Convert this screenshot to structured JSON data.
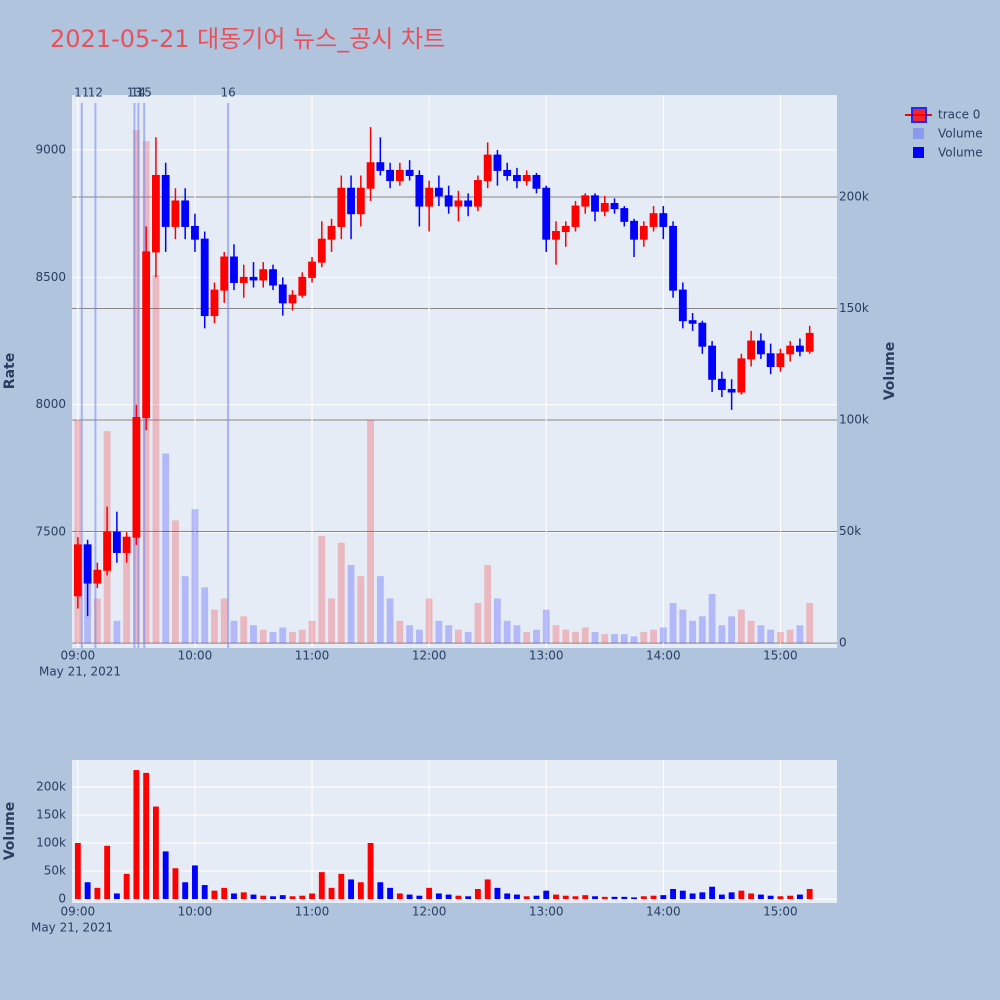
{
  "chart_data": [
    {
      "type": "candlestick",
      "title": "2021-05-21 대동기어 뉴스_공시 차트",
      "name": "trace 0",
      "ylabel": "Rate",
      "y2label": "Volume",
      "x_date_label": "May 21, 2021",
      "increasing_color": "#ff0000",
      "decreasing_color": "#0000ff",
      "x": [
        0,
        5,
        10,
        15,
        20,
        25,
        30,
        35,
        40,
        45,
        50,
        55,
        60,
        65,
        70,
        75,
        80,
        85,
        90,
        95,
        100,
        105,
        110,
        115,
        120,
        125,
        130,
        135,
        140,
        145,
        150,
        155,
        160,
        165,
        170,
        175,
        180,
        185,
        190,
        195,
        200,
        205,
        210,
        215,
        220,
        225,
        230,
        235,
        240,
        245,
        250,
        255,
        260,
        265,
        270,
        275,
        280,
        285,
        290,
        295,
        300,
        305,
        310,
        315,
        320,
        325,
        330,
        335,
        340,
        345,
        350,
        355,
        360,
        365,
        370,
        375
      ],
      "open": [
        7250,
        7450,
        7300,
        7350,
        7500,
        7420,
        7480,
        7950,
        8600,
        8900,
        8700,
        8800,
        8700,
        8650,
        8350,
        8450,
        8580,
        8480,
        8500,
        8490,
        8530,
        8470,
        8400,
        8430,
        8500,
        8560,
        8650,
        8700,
        8850,
        8750,
        8850,
        8950,
        8920,
        8880,
        8920,
        8900,
        8780,
        8850,
        8820,
        8780,
        8800,
        8780,
        8880,
        8980,
        8920,
        8900,
        8880,
        8900,
        8850,
        8650,
        8680,
        8700,
        8780,
        8820,
        8760,
        8790,
        8770,
        8720,
        8650,
        8700,
        8750,
        8700,
        8450,
        8330,
        8320,
        8230,
        8100,
        8060,
        8050,
        8180,
        8250,
        8200,
        8150,
        8200,
        8230,
        8210
      ],
      "high": [
        7480,
        7470,
        7380,
        7600,
        7580,
        7500,
        8000,
        8700,
        9050,
        8950,
        8850,
        8850,
        8750,
        8680,
        8480,
        8600,
        8630,
        8550,
        8560,
        8560,
        8550,
        8500,
        8450,
        8520,
        8580,
        8720,
        8730,
        8900,
        8900,
        8900,
        9090,
        9050,
        8950,
        8950,
        8960,
        8920,
        8880,
        8900,
        8860,
        8840,
        8830,
        8900,
        9030,
        9000,
        8950,
        8930,
        8920,
        8910,
        8860,
        8720,
        8720,
        8800,
        8830,
        8830,
        8820,
        8810,
        8780,
        8730,
        8720,
        8780,
        8780,
        8720,
        8480,
        8360,
        8330,
        8250,
        8130,
        8100,
        8200,
        8290,
        8280,
        8240,
        8220,
        8250,
        8260,
        8310
      ],
      "low": [
        7200,
        7170,
        7280,
        7330,
        7380,
        7380,
        7450,
        7900,
        8500,
        8600,
        8650,
        8650,
        8600,
        8300,
        8320,
        8400,
        8450,
        8420,
        8460,
        8460,
        8450,
        8350,
        8370,
        8420,
        8480,
        8540,
        8600,
        8650,
        8650,
        8700,
        8800,
        8900,
        8850,
        8860,
        8880,
        8700,
        8680,
        8780,
        8750,
        8720,
        8740,
        8760,
        8850,
        8860,
        8880,
        8850,
        8860,
        8830,
        8600,
        8550,
        8620,
        8680,
        8750,
        8720,
        8740,
        8750,
        8700,
        8580,
        8620,
        8680,
        8650,
        8420,
        8300,
        8290,
        8200,
        8050,
        8030,
        7980,
        8040,
        8150,
        8180,
        8120,
        8130,
        8170,
        8190,
        8200
      ],
      "close": [
        7450,
        7300,
        7350,
        7500,
        7420,
        7480,
        7950,
        8600,
        8900,
        8700,
        8800,
        8700,
        8650,
        8350,
        8450,
        8580,
        8480,
        8500,
        8490,
        8530,
        8470,
        8400,
        8430,
        8500,
        8560,
        8650,
        8700,
        8850,
        8750,
        8850,
        8950,
        8920,
        8880,
        8920,
        8900,
        8780,
        8850,
        8820,
        8780,
        8800,
        8780,
        8880,
        8980,
        8920,
        8900,
        8880,
        8900,
        8850,
        8650,
        8680,
        8700,
        8780,
        8820,
        8760,
        8790,
        8770,
        8720,
        8650,
        8700,
        8750,
        8700,
        8450,
        8330,
        8320,
        8230,
        8100,
        8060,
        8050,
        8180,
        8250,
        8200,
        8150,
        8200,
        8230,
        8210,
        8280
      ],
      "volume": {
        "name": "Volume",
        "color": "#8a9af0",
        "axis": "y2",
        "values": [
          100000,
          30000,
          20000,
          95000,
          10000,
          45000,
          230000,
          225000,
          165000,
          85000,
          55000,
          30000,
          60000,
          25000,
          15000,
          20000,
          10000,
          12000,
          8000,
          6000,
          5000,
          7000,
          5000,
          6000,
          10000,
          48000,
          20000,
          45000,
          35000,
          30000,
          100000,
          30000,
          20000,
          10000,
          8000,
          6000,
          20000,
          10000,
          8000,
          6000,
          5000,
          18000,
          35000,
          20000,
          10000,
          8000,
          5000,
          6000,
          15000,
          8000,
          6000,
          5000,
          7000,
          5000,
          4000,
          4000,
          4000,
          3000,
          5000,
          6000,
          7000,
          18000,
          15000,
          10000,
          12000,
          22000,
          8000,
          12000,
          15000,
          10000,
          8000,
          6000,
          5000,
          6000,
          8000,
          18000
        ]
      },
      "xlim": [
        -3,
        389
      ],
      "xticks": [
        {
          "value": 0,
          "label": "09:00"
        },
        {
          "value": 60,
          "label": "10:00"
        },
        {
          "value": 120,
          "label": "11:00"
        },
        {
          "value": 180,
          "label": "12:00"
        },
        {
          "value": 240,
          "label": "13:00"
        },
        {
          "value": 300,
          "label": "14:00"
        },
        {
          "value": 360,
          "label": "15:00"
        }
      ],
      "ylim": [
        7045,
        9216
      ],
      "yticks": [
        7500,
        8000,
        8500,
        9000
      ],
      "y2lim": [
        -2200,
        245700
      ],
      "y2ticks": [
        0,
        {
          "value": 50000,
          "label": "50k"
        },
        {
          "value": 100000,
          "label": "100k"
        },
        {
          "value": 150000,
          "label": "150k"
        },
        {
          "value": 200000,
          "label": "200k"
        }
      ],
      "annotations": [
        {
          "x": 2,
          "label": "11"
        },
        {
          "x": 9,
          "label": "12"
        },
        {
          "x": 29,
          "label": "13"
        },
        {
          "x": 31,
          "label": "14"
        },
        {
          "x": 34,
          "label": "15"
        },
        {
          "x": 77,
          "label": "16"
        }
      ],
      "annotation_color": "#7b8cf0",
      "grid": true
    },
    {
      "type": "bar",
      "name": "Volume",
      "color": "#0000ff",
      "ylabel": "Volume",
      "x_date_label": "May 21, 2021",
      "x": [
        0,
        5,
        10,
        15,
        20,
        25,
        30,
        35,
        40,
        45,
        50,
        55,
        60,
        65,
        70,
        75,
        80,
        85,
        90,
        95,
        100,
        105,
        110,
        115,
        120,
        125,
        130,
        135,
        140,
        145,
        150,
        155,
        160,
        165,
        170,
        175,
        180,
        185,
        190,
        195,
        200,
        205,
        210,
        215,
        220,
        225,
        230,
        235,
        240,
        245,
        250,
        255,
        260,
        265,
        270,
        275,
        280,
        285,
        290,
        295,
        300,
        305,
        310,
        315,
        320,
        325,
        330,
        335,
        340,
        345,
        350,
        355,
        360,
        365,
        370,
        375
      ],
      "values": [
        100000,
        30000,
        20000,
        95000,
        10000,
        45000,
        230000,
        225000,
        165000,
        85000,
        55000,
        30000,
        60000,
        25000,
        15000,
        20000,
        10000,
        12000,
        8000,
        6000,
        5000,
        7000,
        5000,
        6000,
        10000,
        48000,
        20000,
        45000,
        35000,
        30000,
        100000,
        30000,
        20000,
        10000,
        8000,
        6000,
        20000,
        10000,
        8000,
        6000,
        5000,
        18000,
        35000,
        20000,
        10000,
        8000,
        5000,
        6000,
        15000,
        8000,
        6000,
        5000,
        7000,
        5000,
        4000,
        4000,
        4000,
        3000,
        5000,
        6000,
        7000,
        18000,
        15000,
        10000,
        12000,
        22000,
        8000,
        12000,
        15000,
        10000,
        8000,
        6000,
        5000,
        6000,
        8000,
        18000
      ],
      "xlim": [
        -3,
        389
      ],
      "xticks": [
        {
          "value": 0,
          "label": "09:00"
        },
        {
          "value": 60,
          "label": "10:00"
        },
        {
          "value": 120,
          "label": "11:00"
        },
        {
          "value": 180,
          "label": "12:00"
        },
        {
          "value": 240,
          "label": "13:00"
        },
        {
          "value": 300,
          "label": "14:00"
        },
        {
          "value": 360,
          "label": "15:00"
        }
      ],
      "ylim": [
        -7000,
        248000
      ],
      "yticks": [
        0,
        {
          "value": 50000,
          "label": "50k"
        },
        {
          "value": 100000,
          "label": "100k"
        },
        {
          "value": 150000,
          "label": "150k"
        },
        {
          "value": 200000,
          "label": "200k"
        }
      ],
      "grid": true
    }
  ]
}
